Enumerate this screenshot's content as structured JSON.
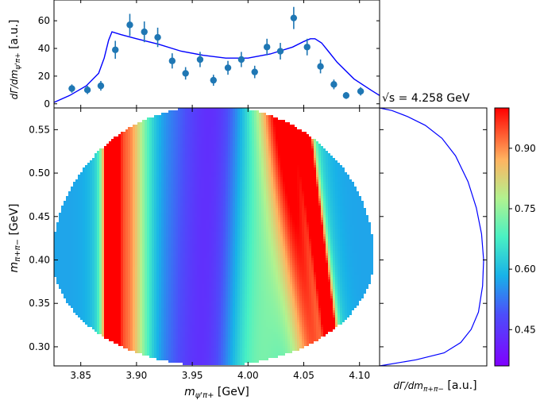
{
  "annotation": "√s = 4.258 GeV",
  "chart_data": [
    {
      "type": "scatter",
      "name": "top-projection",
      "ylabel": "dΓ/dm_{ψ'π+} [a.u.]",
      "xlim": [
        3.826,
        4.118
      ],
      "ylim": [
        -3,
        75
      ],
      "yticks": [
        0,
        20,
        40,
        60
      ],
      "points_x": [
        3.842,
        3.856,
        3.868,
        3.881,
        3.894,
        3.907,
        3.919,
        3.932,
        3.944,
        3.957,
        3.969,
        3.982,
        3.994,
        4.006,
        4.017,
        4.029,
        4.041,
        4.053,
        4.065,
        4.077,
        4.088,
        4.101
      ],
      "points_y": [
        11,
        10,
        13,
        39,
        57,
        52,
        48,
        31,
        22,
        32,
        17,
        26,
        32,
        23,
        41,
        38,
        62,
        41,
        27,
        14,
        6,
        9
      ],
      "errors": [
        3,
        3,
        3.5,
        6.5,
        8,
        7.5,
        7,
        5.5,
        4.5,
        5.5,
        4,
        5,
        5.5,
        4.5,
        6,
        6,
        8,
        6,
        5,
        3.5,
        2.5,
        3
      ],
      "model_x": [
        3.826,
        3.84,
        3.855,
        3.866,
        3.871,
        3.875,
        3.878,
        3.886,
        3.9,
        3.92,
        3.94,
        3.96,
        3.98,
        4.0,
        4.02,
        4.04,
        4.05,
        4.056,
        4.06,
        4.066,
        4.072,
        4.08,
        4.095,
        4.11,
        4.118
      ],
      "model_y": [
        1,
        6,
        13,
        22,
        33,
        46,
        52,
        50,
        47,
        43,
        38,
        35,
        33,
        33,
        36,
        41,
        45,
        47,
        47,
        44,
        38,
        30,
        18,
        10,
        6
      ]
    },
    {
      "type": "heatmap",
      "name": "dalitz-plot",
      "xlabel": "m_{ψ'π+} [GeV]",
      "ylabel": "m_{π+π−} [GeV]",
      "xlim": [
        3.826,
        4.118
      ],
      "ylim": [
        0.278,
        0.575
      ],
      "xticks": [
        3.85,
        3.9,
        3.95,
        4.0,
        4.05,
        4.1
      ],
      "xtick_labels": [
        "3.85",
        "3.90",
        "3.95",
        "4.00",
        "4.05",
        "4.10"
      ],
      "yticks": [
        0.3,
        0.35,
        0.4,
        0.45,
        0.5,
        0.55
      ],
      "ytick_labels": [
        "0.30",
        "0.35",
        "0.40",
        "0.45",
        "0.50",
        "0.55"
      ],
      "boundary": {
        "center_x": 3.969,
        "half_width_x": 0.144,
        "center_y": 0.402,
        "half_height_low": 0.124,
        "half_height_high": 0.176
      },
      "colormap": "rainbow",
      "value_range": [
        0.36,
        1.0
      ]
    },
    {
      "type": "line",
      "name": "side-projection",
      "xlabel": "dΓ/dm_{π+π−} [a.u.]",
      "xlim": [
        0,
        1
      ],
      "ylim": [
        0.278,
        0.575
      ],
      "y": [
        0.278,
        0.285,
        0.293,
        0.305,
        0.32,
        0.34,
        0.37,
        0.4,
        0.43,
        0.46,
        0.49,
        0.52,
        0.54,
        0.555,
        0.565,
        0.572,
        0.575
      ],
      "x": [
        0.0,
        0.35,
        0.62,
        0.78,
        0.88,
        0.95,
        0.99,
        1.0,
        0.98,
        0.93,
        0.85,
        0.73,
        0.6,
        0.44,
        0.27,
        0.12,
        0.0
      ]
    },
    {
      "type": "colorbar",
      "name": "colorbar",
      "range": [
        0.36,
        1.0
      ],
      "ticks": [
        0.45,
        0.6,
        0.75,
        0.9
      ],
      "tick_labels": [
        "0.45",
        "0.60",
        "0.75",
        "0.90"
      ]
    }
  ]
}
